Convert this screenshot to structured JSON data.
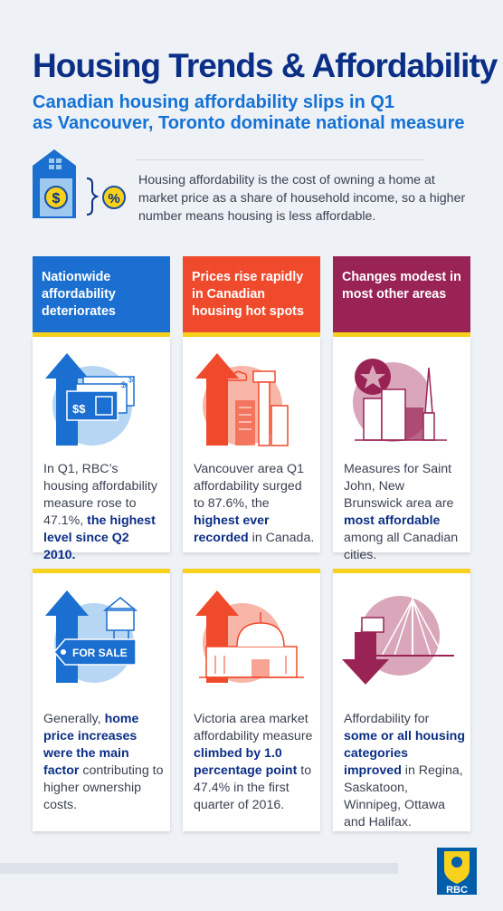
{
  "header": {
    "title": "Housing Trends & Affordability",
    "subtitle_line1": "Canadian housing affordability slips in Q1",
    "subtitle_line2": "as Vancouver, Toronto dominate national measure"
  },
  "intro": {
    "text": "Housing affordability is the cost of owning a home at market price as a share of household income, so a higher number means housing is less affordable.",
    "icons": [
      "house-dollar-icon",
      "percent-icon"
    ]
  },
  "columns": [
    {
      "header": "Nationwide affordability deteriorates",
      "color": "#1a6fd0",
      "cards": [
        {
          "icon": "money-up-arrow-icon",
          "text_pre": "In Q1, RBC’s housing affordability measure rose to 47.1%, ",
          "text_bold": "the highest level since Q2 2010.",
          "text_post": "",
          "illus_label": "$$"
        },
        {
          "icon": "for-sale-up-arrow-icon",
          "text_pre": "Generally, ",
          "text_bold": "home price increases were the main factor",
          "text_post": " contributing to higher ownership costs.",
          "illus_label": "FOR SALE"
        }
      ]
    },
    {
      "header": "Prices rise rapidly in Canadian housing hot spots",
      "color": "#f04a2c",
      "cards": [
        {
          "icon": "vancouver-tower-up-arrow-icon",
          "text_pre": "Vancouver area Q1 affordability surged to 87.6%, the ",
          "text_bold": "highest ever recorded",
          "text_post": " in Canada."
        },
        {
          "icon": "victoria-legislature-up-arrow-icon",
          "text_pre": "Victoria area market affordability measure ",
          "text_bold": "climbed by 1.0 percentage point",
          "text_post": " to 47.4% in the first quarter of 2016."
        }
      ]
    },
    {
      "header": "Changes modest in most other areas",
      "color": "#9a2355",
      "cards": [
        {
          "icon": "saint-john-skyline-star-icon",
          "text_pre": "Measures for Saint John, New Brunswick area are ",
          "text_bold": "most affordable",
          "text_post": " among all Canadian cities."
        },
        {
          "icon": "bridge-down-arrow-icon",
          "text_pre": "Affordability for ",
          "text_bold": "some or all housing categories improved",
          "text_post": " in Regina, Saskatoon, Winnipeg, Ottawa and Halifax."
        }
      ]
    }
  ],
  "footer": {
    "logo_text": "RBC",
    "logo_icon": "rbc-lion-shield-icon",
    "brand_blue": "#005daa",
    "brand_yellow": "#f7d11b"
  }
}
